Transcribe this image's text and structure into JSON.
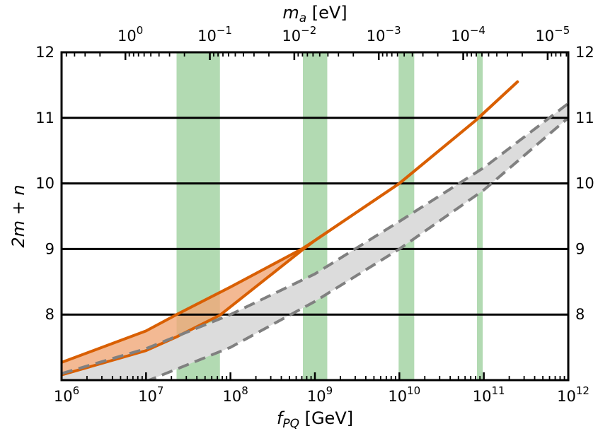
{
  "chart_data": {
    "type": "line",
    "xlabel": "f",
    "xlabel_sub": "PQ",
    "xlabel_unit": " [GeV]",
    "ylabel": "2m + n",
    "top_xlabel": "m",
    "top_xlabel_sub": "a",
    "top_xlabel_unit": " [eV]",
    "x_scale": "log",
    "xlim": [
      1000000,
      1000000000000
    ],
    "ylim": [
      7,
      12
    ],
    "x_ticks": [
      {
        "value": 1000000,
        "base": "10",
        "exp": "6"
      },
      {
        "value": 10000000,
        "base": "10",
        "exp": "7"
      },
      {
        "value": 100000000,
        "base": "10",
        "exp": "8"
      },
      {
        "value": 1000000000,
        "base": "10",
        "exp": "9"
      },
      {
        "value": 10000000000,
        "base": "10",
        "exp": "10"
      },
      {
        "value": 100000000000,
        "base": "10",
        "exp": "11"
      },
      {
        "value": 1000000000000,
        "base": "10",
        "exp": "12"
      }
    ],
    "top_ticks": [
      {
        "f_pq": 5700000,
        "base": "10",
        "exp": "0"
      },
      {
        "f_pq": 57000000,
        "base": "10",
        "exp": "−1"
      },
      {
        "f_pq": 570000000,
        "base": "10",
        "exp": "−2"
      },
      {
        "f_pq": 5700000000,
        "base": "10",
        "exp": "−3"
      },
      {
        "f_pq": 57000000000,
        "base": "10",
        "exp": "−4"
      },
      {
        "f_pq": 570000000000,
        "base": "10",
        "exp": "−5"
      }
    ],
    "y_ticks": [
      {
        "value": 8,
        "label": "8"
      },
      {
        "value": 9,
        "label": "9"
      },
      {
        "value": 10,
        "label": "10"
      },
      {
        "value": 11,
        "label": "11"
      },
      {
        "value": 12,
        "label": "12"
      }
    ],
    "y_ticks_right": [
      {
        "value": 8,
        "label": "8"
      },
      {
        "value": 9,
        "label": "9"
      },
      {
        "value": 10,
        "label": "10"
      },
      {
        "value": 11,
        "label": "11"
      },
      {
        "value": 12,
        "label": "12"
      }
    ],
    "hlines": [
      8,
      9,
      10,
      11
    ],
    "vertical_bands": [
      {
        "x0": 23000000,
        "x1": 75000000
      },
      {
        "x0": 720000000,
        "x1": 1400000000
      },
      {
        "x0": 9800000000,
        "x1": 15000000000
      },
      {
        "x0": 83000000000,
        "x1": 97000000000
      }
    ],
    "series": [
      {
        "style": "solid",
        "color": "#d95f02",
        "fill": "#f0a878",
        "upper": [
          [
            1000000,
            7.27
          ],
          [
            10000000,
            7.75
          ],
          [
            23000000,
            8.0
          ],
          [
            100000000,
            8.42
          ],
          [
            700000000,
            9.0
          ],
          [
            1000000000,
            9.13
          ],
          [
            10000000000,
            10.0
          ],
          [
            80000000000,
            10.96
          ],
          [
            250000000000,
            11.55
          ]
        ],
        "lower": [
          [
            1000000,
            7.08
          ],
          [
            10000000,
            7.45
          ],
          [
            23000000,
            7.66
          ],
          [
            75000000,
            7.99
          ],
          [
            700000000,
            8.98
          ],
          [
            1000000000,
            9.13
          ],
          [
            10000000000,
            10.0
          ],
          [
            80000000000,
            10.96
          ],
          [
            250000000000,
            11.55
          ]
        ]
      },
      {
        "style": "dashed",
        "color": "#808080",
        "fill": "#dcdcdc",
        "upper": [
          [
            1000000,
            7.1
          ],
          [
            10000000,
            7.48
          ],
          [
            100000000,
            8.0
          ],
          [
            1000000000,
            8.62
          ],
          [
            10000000000,
            9.42
          ],
          [
            100000000000,
            10.24
          ],
          [
            1000000000000,
            11.22
          ]
        ],
        "lower": [
          [
            1000000,
            6.55
          ],
          [
            10000000,
            6.98
          ],
          [
            100000000,
            7.5
          ],
          [
            1000000000,
            8.2
          ],
          [
            10000000000,
            9.0
          ],
          [
            100000000000,
            9.9
          ],
          [
            1000000000000,
            11.0
          ]
        ]
      }
    ],
    "colors": {
      "band": "#b2dab2",
      "hline": "#000000"
    }
  }
}
